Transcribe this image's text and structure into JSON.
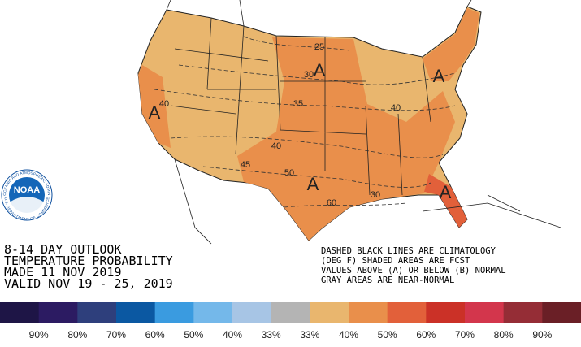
{
  "title_lines": [
    "8-14 DAY OUTLOOK",
    "TEMPERATURE PROBABILITY",
    "MADE  11 NOV 2019",
    "VALID  NOV 19 - 25, 2019"
  ],
  "notes": [
    "DASHED BLACK LINES ARE CLIMATOLOGY",
    "(DEG F) SHADED AREAS ARE FCST",
    "VALUES ABOVE (A) OR BELOW (B) NORMAL",
    "GRAY AREAS ARE NEAR-NORMAL"
  ],
  "logo": {
    "name": "NOAA",
    "ring_top": "NATIONAL OCEANIC AND ATMOSPHERIC ADMINISTRATION",
    "ring_bottom": "U.S. DEPARTMENT OF COMMERCE"
  },
  "contour_labels": [
    "25",
    "30",
    "35",
    "40",
    "40",
    "40",
    "45",
    "50",
    "60",
    "30"
  ],
  "area_labels": [
    "A",
    "A",
    "A",
    "A",
    "A"
  ],
  "legend": {
    "colors": [
      "#1e1546",
      "#2c1b62",
      "#2e3f7c",
      "#0b58a2",
      "#3a9be0",
      "#74b8ea",
      "#a7c5e5",
      "#b4b4b4",
      "#e9b66e",
      "#e98f4b",
      "#e2603a",
      "#cb3127",
      "#d3364c",
      "#952d36",
      "#6a1f26"
    ],
    "labels": [
      "90%",
      "80%",
      "70%",
      "60%",
      "50%",
      "40%",
      "33%",
      "33%",
      "40%",
      "50%",
      "60%",
      "70%",
      "80%",
      "90%"
    ]
  }
}
